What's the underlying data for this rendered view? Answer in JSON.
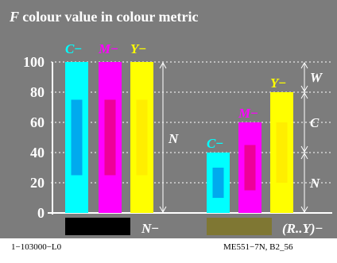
{
  "chart_data": {
    "type": "bar",
    "title": {
      "prefix": "F",
      "text": "colour value in colour metric"
    },
    "y_ticks": [
      "0",
      "20",
      "40",
      "60",
      "80",
      "100"
    ],
    "ylim": [
      0,
      100
    ],
    "grid": true,
    "groups": [
      {
        "name": "group-1",
        "bars": [
          {
            "label": "C",
            "color": "#00ffff",
            "inner_color": "#00aaee",
            "value": 100,
            "inner_from": 25,
            "inner_to": 75
          },
          {
            "label": "M",
            "color": "#ff00ff",
            "inner_color": "#ee0099",
            "value": 100,
            "inner_from": 25,
            "inner_to": 75
          },
          {
            "label": "Y",
            "color": "#ffff00",
            "inner_color": "#ffee00",
            "value": 100,
            "inner_from": 25,
            "inner_to": 75
          }
        ],
        "swatch_color": "#000000",
        "swatch_label": "N",
        "bracket_label": "N"
      },
      {
        "name": "group-2",
        "bars": [
          {
            "label": "C",
            "color": "#00ffff",
            "inner_color": "#00aaee",
            "value": 40,
            "inner_from": 10,
            "inner_to": 30
          },
          {
            "label": "M",
            "color": "#ff00ff",
            "inner_color": "#ee0099",
            "value": 60,
            "inner_from": 15,
            "inner_to": 45
          },
          {
            "label": "Y",
            "color": "#ffff00",
            "inner_color": "#ffee00",
            "value": 80,
            "inner_from": 20,
            "inner_to": 60
          }
        ],
        "swatch_color": "#7f7733",
        "swatch_label": "(R..Y)",
        "brackets": [
          {
            "label": "W",
            "from": 80,
            "to": 100
          },
          {
            "label": "C",
            "from": 40,
            "to": 80
          },
          {
            "label": "N",
            "from": 0,
            "to": 40
          }
        ]
      }
    ]
  },
  "footer": {
    "left": "1−103000−L0",
    "right": "ME551−7N, B2_56"
  }
}
